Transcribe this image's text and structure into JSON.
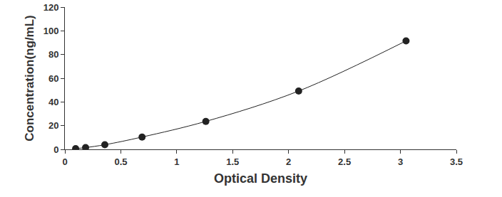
{
  "chart_data": {
    "type": "scatter",
    "x_label": "Optical Density",
    "y_label": "Concentration(ng/mL)",
    "x": [
      0.096,
      0.185,
      0.357,
      0.69,
      1.26,
      2.09,
      3.05
    ],
    "values": [
      0.6,
      1.5,
      3.9,
      10.4,
      23.6,
      49.2,
      91.5
    ],
    "color": "#222222",
    "marker": "circle",
    "line_style": "smooth",
    "xlim": [
      0,
      3.5
    ],
    "xticks": [
      0,
      0.5,
      1,
      1.5,
      2,
      2.5,
      3,
      3.5
    ],
    "ylim": [
      0,
      120
    ],
    "yticks": [
      0,
      20,
      40,
      60,
      80,
      100,
      120
    ],
    "grid": false
  }
}
